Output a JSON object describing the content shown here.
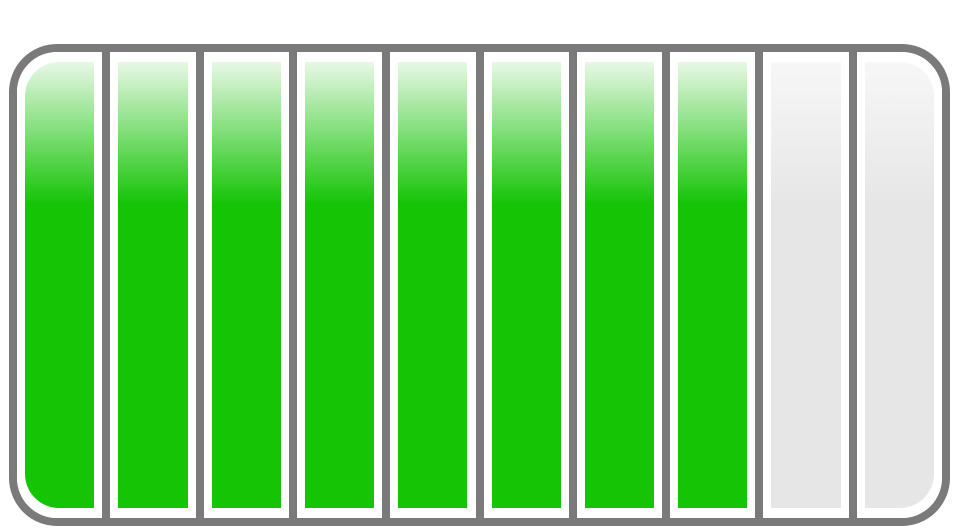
{
  "meter": {
    "segments_total": 10,
    "segments_filled": 8,
    "level_fraction": 0.8,
    "filled_color": "#14c405",
    "filled_highlight_color": "#e8f8e6",
    "empty_color": "#e6e6e6",
    "empty_highlight_color": "#f7f7f7",
    "border_color": "#7a7a7a"
  }
}
